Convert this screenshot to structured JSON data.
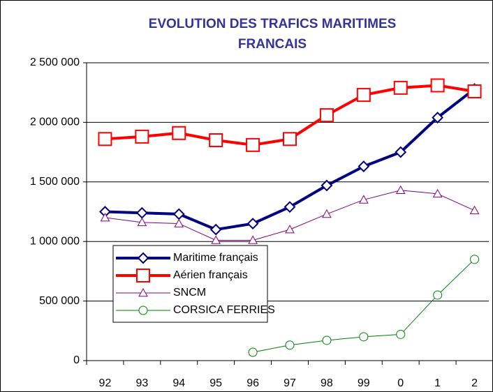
{
  "chart_data": {
    "type": "line",
    "title": "EVOLUTION DES TRAFICS MARITIMES FRANCAIS",
    "categories": [
      "92",
      "93",
      "94",
      "95",
      "96",
      "97",
      "98",
      "99",
      "0",
      "1",
      "2"
    ],
    "series": [
      {
        "name": "Maritime français",
        "color": "#000080",
        "marker": "diamond",
        "line_width": 4,
        "values": [
          1250000,
          1240000,
          1230000,
          1100000,
          1150000,
          1290000,
          1470000,
          1630000,
          1750000,
          2040000,
          2280000
        ]
      },
      {
        "name": "Aérien français",
        "color": "#ff0000",
        "marker": "square",
        "line_width": 4,
        "values": [
          1860000,
          1880000,
          1910000,
          1850000,
          1810000,
          1860000,
          2060000,
          2230000,
          2290000,
          2310000,
          2260000
        ]
      },
      {
        "name": "SNCM",
        "color": "#800080",
        "marker": "triangle",
        "line_width": 1,
        "values": [
          1200000,
          1160000,
          1150000,
          1010000,
          1010000,
          1100000,
          1230000,
          1350000,
          1430000,
          1400000,
          1260000
        ]
      },
      {
        "name": "CORSICA FERRIES",
        "color": "#008000",
        "marker": "circle",
        "line_width": 1,
        "values": [
          null,
          null,
          null,
          null,
          70000,
          130000,
          170000,
          200000,
          220000,
          550000,
          850000
        ]
      }
    ],
    "ylim": [
      0,
      2500000
    ],
    "yticks": [
      0,
      {
        "value": 500000,
        "label": "500 000"
      },
      {
        "value": 1000000,
        "label": "1 000 000"
      },
      {
        "value": 1500000,
        "label": "1 500 000"
      },
      {
        "value": 2000000,
        "label": "2 000 000"
      },
      {
        "value": 2500000,
        "label": "2 500 000"
      }
    ],
    "grid": true
  }
}
